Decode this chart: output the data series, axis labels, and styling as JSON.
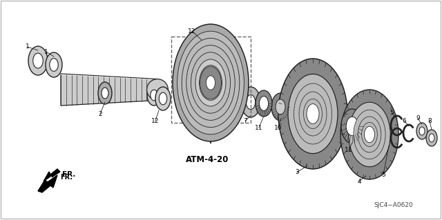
{
  "bg_color": "#ffffff",
  "diagram_ref": "SJC4−A0620",
  "atm_label": "ATM-4-20",
  "fr_label": "FR.",
  "dark": "#222222",
  "gray1": "#aaaaaa",
  "gray2": "#cccccc",
  "gray3": "#e8e8e8"
}
